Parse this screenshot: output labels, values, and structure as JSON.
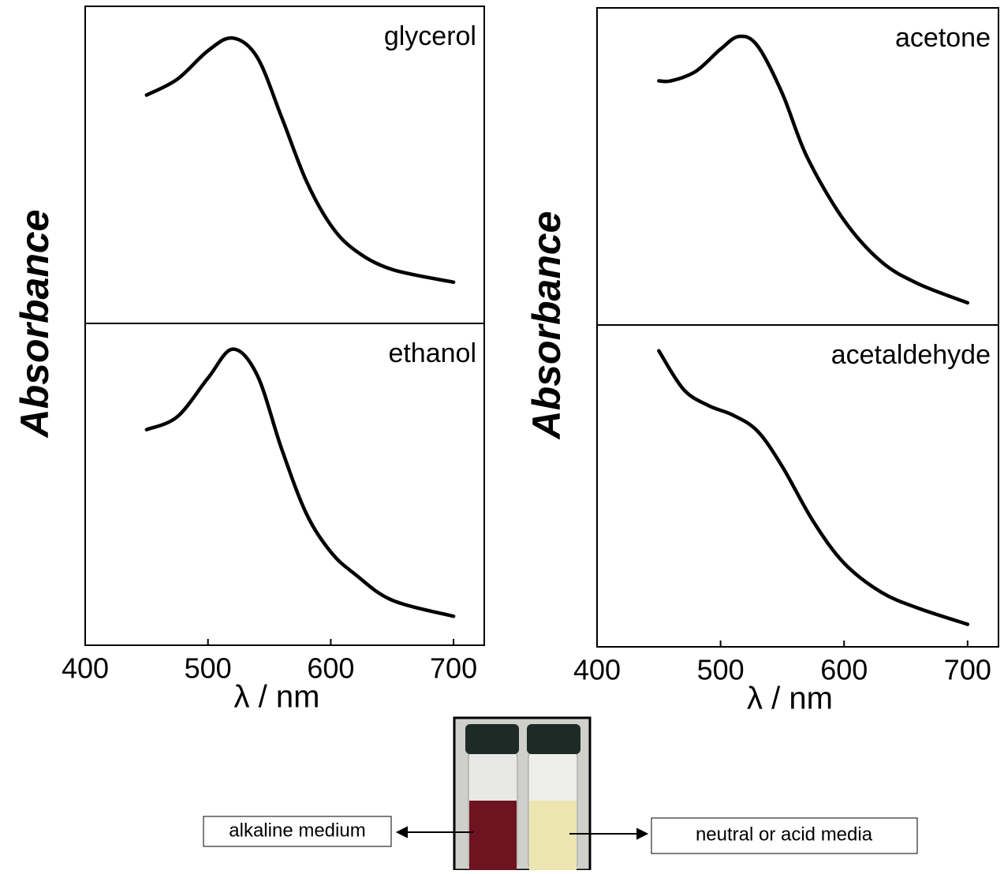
{
  "chart_data": [
    {
      "type": "line",
      "label": "glycerol",
      "ylabel": "Absorbance",
      "x": [
        450,
        475,
        500,
        520,
        540,
        560,
        580,
        600,
        620,
        650,
        700
      ],
      "values": [
        0.72,
        0.77,
        0.86,
        0.9,
        0.84,
        0.65,
        0.45,
        0.31,
        0.23,
        0.17,
        0.13
      ],
      "xlim": [
        400,
        725
      ],
      "ylim": [
        0,
        1
      ],
      "color": "#000000"
    },
    {
      "type": "line",
      "label": "ethanol",
      "xlabel": "λ / nm",
      "x": [
        450,
        475,
        500,
        520,
        540,
        560,
        580,
        600,
        620,
        650,
        700
      ],
      "values": [
        0.67,
        0.71,
        0.83,
        0.92,
        0.84,
        0.61,
        0.41,
        0.29,
        0.22,
        0.14,
        0.09
      ],
      "xlim": [
        400,
        725
      ],
      "ylim": [
        0,
        1
      ],
      "xticks": [
        400,
        500,
        600,
        700
      ],
      "color": "#000000"
    },
    {
      "type": "line",
      "label": "acetone",
      "ylabel": "Absorbance",
      "x": [
        450,
        460,
        480,
        500,
        515,
        530,
        550,
        570,
        600,
        630,
        660,
        700
      ],
      "values": [
        0.77,
        0.77,
        0.8,
        0.87,
        0.91,
        0.88,
        0.73,
        0.53,
        0.33,
        0.2,
        0.13,
        0.07
      ],
      "xlim": [
        400,
        725
      ],
      "ylim": [
        0,
        1
      ],
      "color": "#000000"
    },
    {
      "type": "line",
      "label": "acetaldehyde",
      "xlabel": "λ / nm",
      "x": [
        450,
        470,
        490,
        510,
        530,
        550,
        575,
        600,
        630,
        660,
        700
      ],
      "values": [
        0.92,
        0.8,
        0.75,
        0.72,
        0.67,
        0.56,
        0.39,
        0.26,
        0.17,
        0.12,
        0.07
      ],
      "xlim": [
        400,
        725
      ],
      "ylim": [
        0,
        1
      ],
      "xticks": [
        400,
        500,
        600,
        700
      ],
      "color": "#000000"
    }
  ],
  "photo": {
    "left_label": "alkaline medium",
    "right_label": "neutral or acid media"
  }
}
